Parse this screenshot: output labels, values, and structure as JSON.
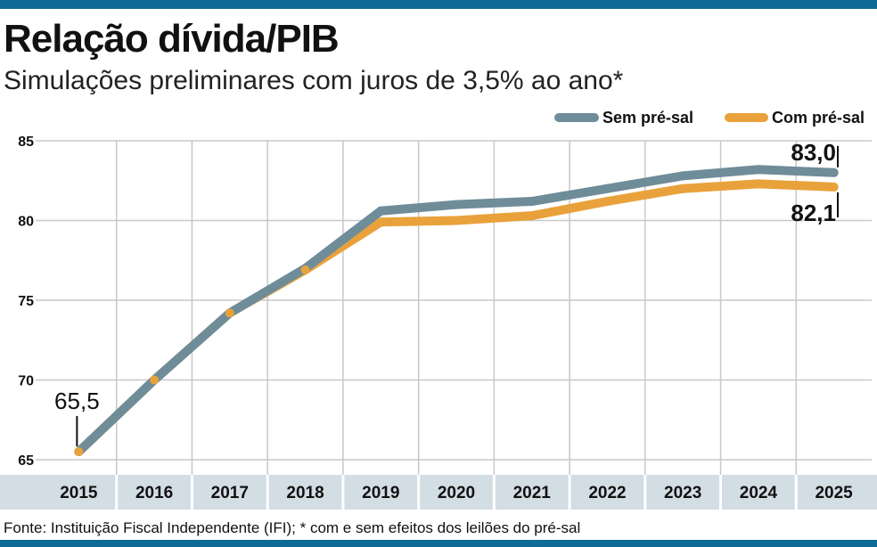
{
  "header": {
    "title": "Relação dívida/PIB",
    "subtitle": "Simulações preliminares com juros de 3,5% ao ano*"
  },
  "footer": {
    "source": "Fonte: Instituição Fiscal Independente (IFI); * com e sem efeitos dos leilões do pré-sal"
  },
  "colors": {
    "brand_bar": "#0f6a96",
    "sem_pre_sal": "#6f8c99",
    "com_pre_sal": "#e9a23b",
    "x_band": "#d3dde4",
    "grid": "#c8c8c8"
  },
  "chart_data": {
    "type": "line",
    "title": "Relação dívida/PIB",
    "subtitle": "Simulações preliminares com juros de 3,5% ao ano*",
    "categories": [
      "2015",
      "2016",
      "2017",
      "2018",
      "2019",
      "2020",
      "2021",
      "2022",
      "2023",
      "2024",
      "2025"
    ],
    "series": [
      {
        "name": "Sem pré-sal",
        "color": "#6f8c99",
        "values": [
          65.5,
          70.0,
          74.2,
          77.0,
          80.6,
          81.0,
          81.2,
          82.0,
          82.8,
          83.2,
          83.0
        ]
      },
      {
        "name": "Com pré-sal",
        "color": "#e9a23b",
        "values": [
          65.5,
          70.0,
          74.2,
          76.9,
          79.9,
          80.0,
          80.3,
          81.2,
          82.0,
          82.3,
          82.1
        ]
      }
    ],
    "yticks": [
      "85",
      "80",
      "75",
      "70",
      "65"
    ],
    "ylim": [
      65,
      85
    ],
    "annotations": [
      {
        "label": "65,5",
        "series": 0,
        "index": 0
      },
      {
        "label": "83,0",
        "series": 0,
        "index": 10
      },
      {
        "label": "82,1",
        "series": 1,
        "index": 10
      }
    ],
    "grid": true,
    "legend_position": "top-right"
  }
}
